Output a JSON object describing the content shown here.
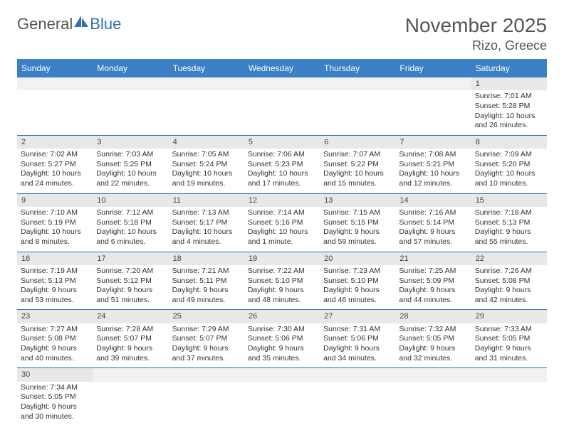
{
  "logo": {
    "part1": "General",
    "part2": "Blue"
  },
  "title": "November 2025",
  "location": "Rizo, Greece",
  "header_bg": "#3b7fc4",
  "header_fg": "#ffffff",
  "divider_color": "#2f6fb5",
  "daynum_bg": "#e8e8e8",
  "text_color": "#333333",
  "days": [
    "Sunday",
    "Monday",
    "Tuesday",
    "Wednesday",
    "Thursday",
    "Friday",
    "Saturday"
  ],
  "weeks": [
    [
      null,
      null,
      null,
      null,
      null,
      null,
      {
        "n": "1",
        "sr": "7:01 AM",
        "ss": "5:28 PM",
        "dl": "10 hours and 26 minutes."
      }
    ],
    [
      {
        "n": "2",
        "sr": "7:02 AM",
        "ss": "5:27 PM",
        "dl": "10 hours and 24 minutes."
      },
      {
        "n": "3",
        "sr": "7:03 AM",
        "ss": "5:25 PM",
        "dl": "10 hours and 22 minutes."
      },
      {
        "n": "4",
        "sr": "7:05 AM",
        "ss": "5:24 PM",
        "dl": "10 hours and 19 minutes."
      },
      {
        "n": "5",
        "sr": "7:06 AM",
        "ss": "5:23 PM",
        "dl": "10 hours and 17 minutes."
      },
      {
        "n": "6",
        "sr": "7:07 AM",
        "ss": "5:22 PM",
        "dl": "10 hours and 15 minutes."
      },
      {
        "n": "7",
        "sr": "7:08 AM",
        "ss": "5:21 PM",
        "dl": "10 hours and 12 minutes."
      },
      {
        "n": "8",
        "sr": "7:09 AM",
        "ss": "5:20 PM",
        "dl": "10 hours and 10 minutes."
      }
    ],
    [
      {
        "n": "9",
        "sr": "7:10 AM",
        "ss": "5:19 PM",
        "dl": "10 hours and 8 minutes."
      },
      {
        "n": "10",
        "sr": "7:12 AM",
        "ss": "5:18 PM",
        "dl": "10 hours and 6 minutes."
      },
      {
        "n": "11",
        "sr": "7:13 AM",
        "ss": "5:17 PM",
        "dl": "10 hours and 4 minutes."
      },
      {
        "n": "12",
        "sr": "7:14 AM",
        "ss": "5:16 PM",
        "dl": "10 hours and 1 minute."
      },
      {
        "n": "13",
        "sr": "7:15 AM",
        "ss": "5:15 PM",
        "dl": "9 hours and 59 minutes."
      },
      {
        "n": "14",
        "sr": "7:16 AM",
        "ss": "5:14 PM",
        "dl": "9 hours and 57 minutes."
      },
      {
        "n": "15",
        "sr": "7:18 AM",
        "ss": "5:13 PM",
        "dl": "9 hours and 55 minutes."
      }
    ],
    [
      {
        "n": "16",
        "sr": "7:19 AM",
        "ss": "5:13 PM",
        "dl": "9 hours and 53 minutes."
      },
      {
        "n": "17",
        "sr": "7:20 AM",
        "ss": "5:12 PM",
        "dl": "9 hours and 51 minutes."
      },
      {
        "n": "18",
        "sr": "7:21 AM",
        "ss": "5:11 PM",
        "dl": "9 hours and 49 minutes."
      },
      {
        "n": "19",
        "sr": "7:22 AM",
        "ss": "5:10 PM",
        "dl": "9 hours and 48 minutes."
      },
      {
        "n": "20",
        "sr": "7:23 AM",
        "ss": "5:10 PM",
        "dl": "9 hours and 46 minutes."
      },
      {
        "n": "21",
        "sr": "7:25 AM",
        "ss": "5:09 PM",
        "dl": "9 hours and 44 minutes."
      },
      {
        "n": "22",
        "sr": "7:26 AM",
        "ss": "5:08 PM",
        "dl": "9 hours and 42 minutes."
      }
    ],
    [
      {
        "n": "23",
        "sr": "7:27 AM",
        "ss": "5:08 PM",
        "dl": "9 hours and 40 minutes."
      },
      {
        "n": "24",
        "sr": "7:28 AM",
        "ss": "5:07 PM",
        "dl": "9 hours and 39 minutes."
      },
      {
        "n": "25",
        "sr": "7:29 AM",
        "ss": "5:07 PM",
        "dl": "9 hours and 37 minutes."
      },
      {
        "n": "26",
        "sr": "7:30 AM",
        "ss": "5:06 PM",
        "dl": "9 hours and 35 minutes."
      },
      {
        "n": "27",
        "sr": "7:31 AM",
        "ss": "5:06 PM",
        "dl": "9 hours and 34 minutes."
      },
      {
        "n": "28",
        "sr": "7:32 AM",
        "ss": "5:05 PM",
        "dl": "9 hours and 32 minutes."
      },
      {
        "n": "29",
        "sr": "7:33 AM",
        "ss": "5:05 PM",
        "dl": "9 hours and 31 minutes."
      }
    ],
    [
      {
        "n": "30",
        "sr": "7:34 AM",
        "ss": "5:05 PM",
        "dl": "9 hours and 30 minutes."
      },
      null,
      null,
      null,
      null,
      null,
      null
    ]
  ],
  "labels": {
    "sunrise": "Sunrise:",
    "sunset": "Sunset:",
    "daylight": "Daylight:"
  }
}
